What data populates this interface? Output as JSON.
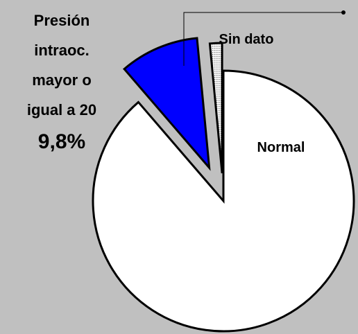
{
  "chart_data": {
    "type": "pie",
    "categories": [
      "Sin dato",
      "Presión intraoc. mayor o igual a 20",
      "Normal"
    ],
    "values": [
      1.5,
      9.8,
      88.7
    ],
    "value_labels": [
      null,
      "9,8%",
      null
    ],
    "colors": [
      "#d0d0d0",
      "#0000ff",
      "#ffffff"
    ]
  }
}
